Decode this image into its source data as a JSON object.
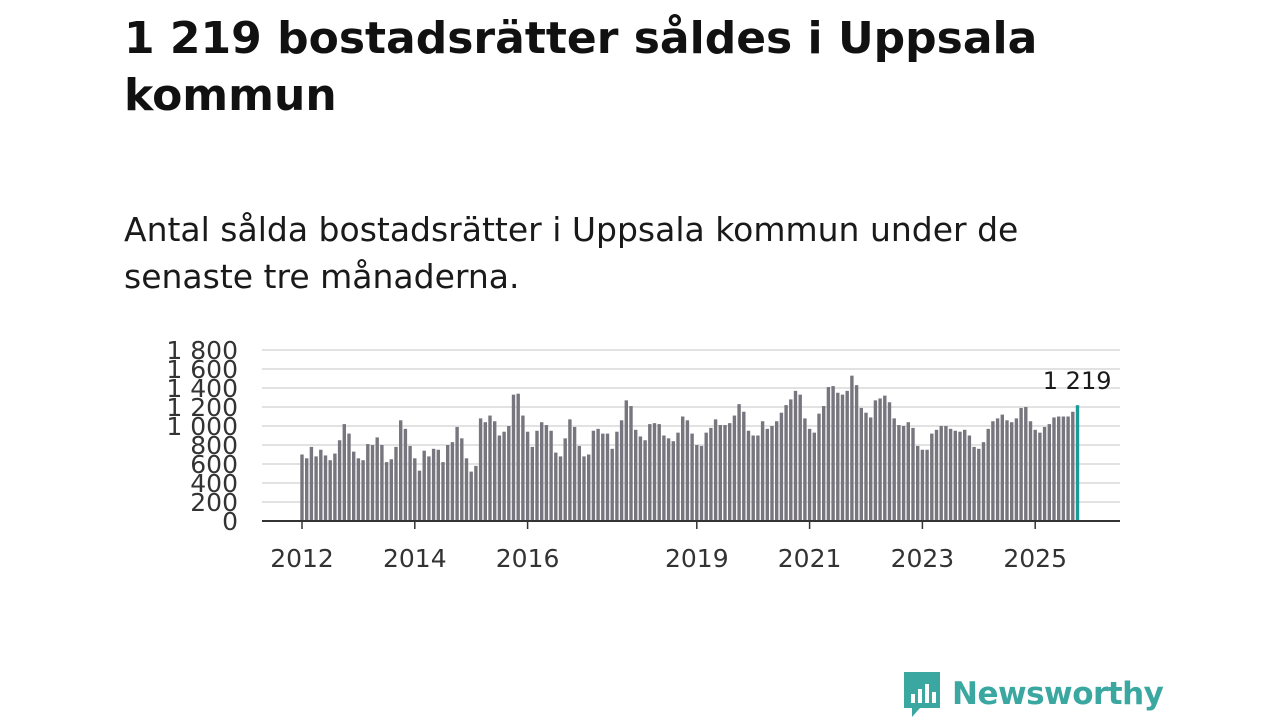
{
  "header": {
    "title": "1 219 bostadsrätter såldes i Uppsala kommun",
    "subtitle": "Antal sålda bostadsrätter i Uppsala kommun under de senaste tre månaderna."
  },
  "brand": {
    "name": "Newsworthy",
    "color": "#3aa7a1"
  },
  "colors": {
    "bar": "#77767e",
    "highlight": "#1b9a96",
    "grid": "#d9d9d9",
    "axis": "#333333"
  },
  "chart_data": {
    "type": "bar",
    "title": "",
    "xlabel": "",
    "ylabel": "",
    "ylim": [
      0,
      1800
    ],
    "y_ticks": [
      0,
      200,
      400,
      600,
      800,
      1000,
      1200,
      1400,
      1600,
      1800
    ],
    "y_tick_labels": [
      "0",
      "200",
      "400",
      "600",
      "800",
      "1 000",
      "1 200",
      "1 400",
      "1 600",
      "1 800"
    ],
    "x_year_labels": [
      {
        "label": "2012",
        "index": 0
      },
      {
        "label": "2014",
        "index": 24
      },
      {
        "label": "2016",
        "index": 48
      },
      {
        "label": "2019",
        "index": 84
      },
      {
        "label": "2021",
        "index": 108
      },
      {
        "label": "2023",
        "index": 132
      },
      {
        "label": "2025",
        "index": 156
      }
    ],
    "grid": true,
    "highlight_index": 165,
    "highlight_label": "1 219",
    "values": [
      700,
      660,
      780,
      680,
      750,
      690,
      640,
      710,
      850,
      1020,
      920,
      730,
      660,
      640,
      810,
      800,
      880,
      800,
      620,
      650,
      780,
      1060,
      970,
      790,
      660,
      530,
      740,
      680,
      760,
      750,
      620,
      800,
      830,
      990,
      870,
      660,
      520,
      580,
      1080,
      1040,
      1110,
      1050,
      900,
      940,
      1000,
      1330,
      1340,
      1110,
      940,
      780,
      950,
      1040,
      1010,
      950,
      720,
      680,
      870,
      1070,
      990,
      790,
      680,
      700,
      950,
      970,
      920,
      920,
      760,
      940,
      1060,
      1270,
      1210,
      960,
      890,
      850,
      1020,
      1030,
      1020,
      900,
      870,
      840,
      930,
      1100,
      1060,
      920,
      800,
      790,
      930,
      980,
      1070,
      1010,
      1010,
      1030,
      1110,
      1230,
      1150,
      950,
      900,
      900,
      1050,
      970,
      1000,
      1050,
      1140,
      1220,
      1280,
      1370,
      1330,
      1080,
      970,
      930,
      1130,
      1210,
      1410,
      1420,
      1350,
      1330,
      1370,
      1530,
      1430,
      1190,
      1140,
      1090,
      1270,
      1290,
      1320,
      1250,
      1080,
      1010,
      1000,
      1040,
      980,
      790,
      750,
      750,
      920,
      960,
      1000,
      1000,
      970,
      950,
      940,
      960,
      900,
      780,
      760,
      830,
      970,
      1050,
      1080,
      1120,
      1060,
      1040,
      1080,
      1190,
      1200,
      1050,
      960,
      930,
      990,
      1020,
      1090,
      1100,
      1100,
      1100,
      1150,
      1219
    ]
  }
}
